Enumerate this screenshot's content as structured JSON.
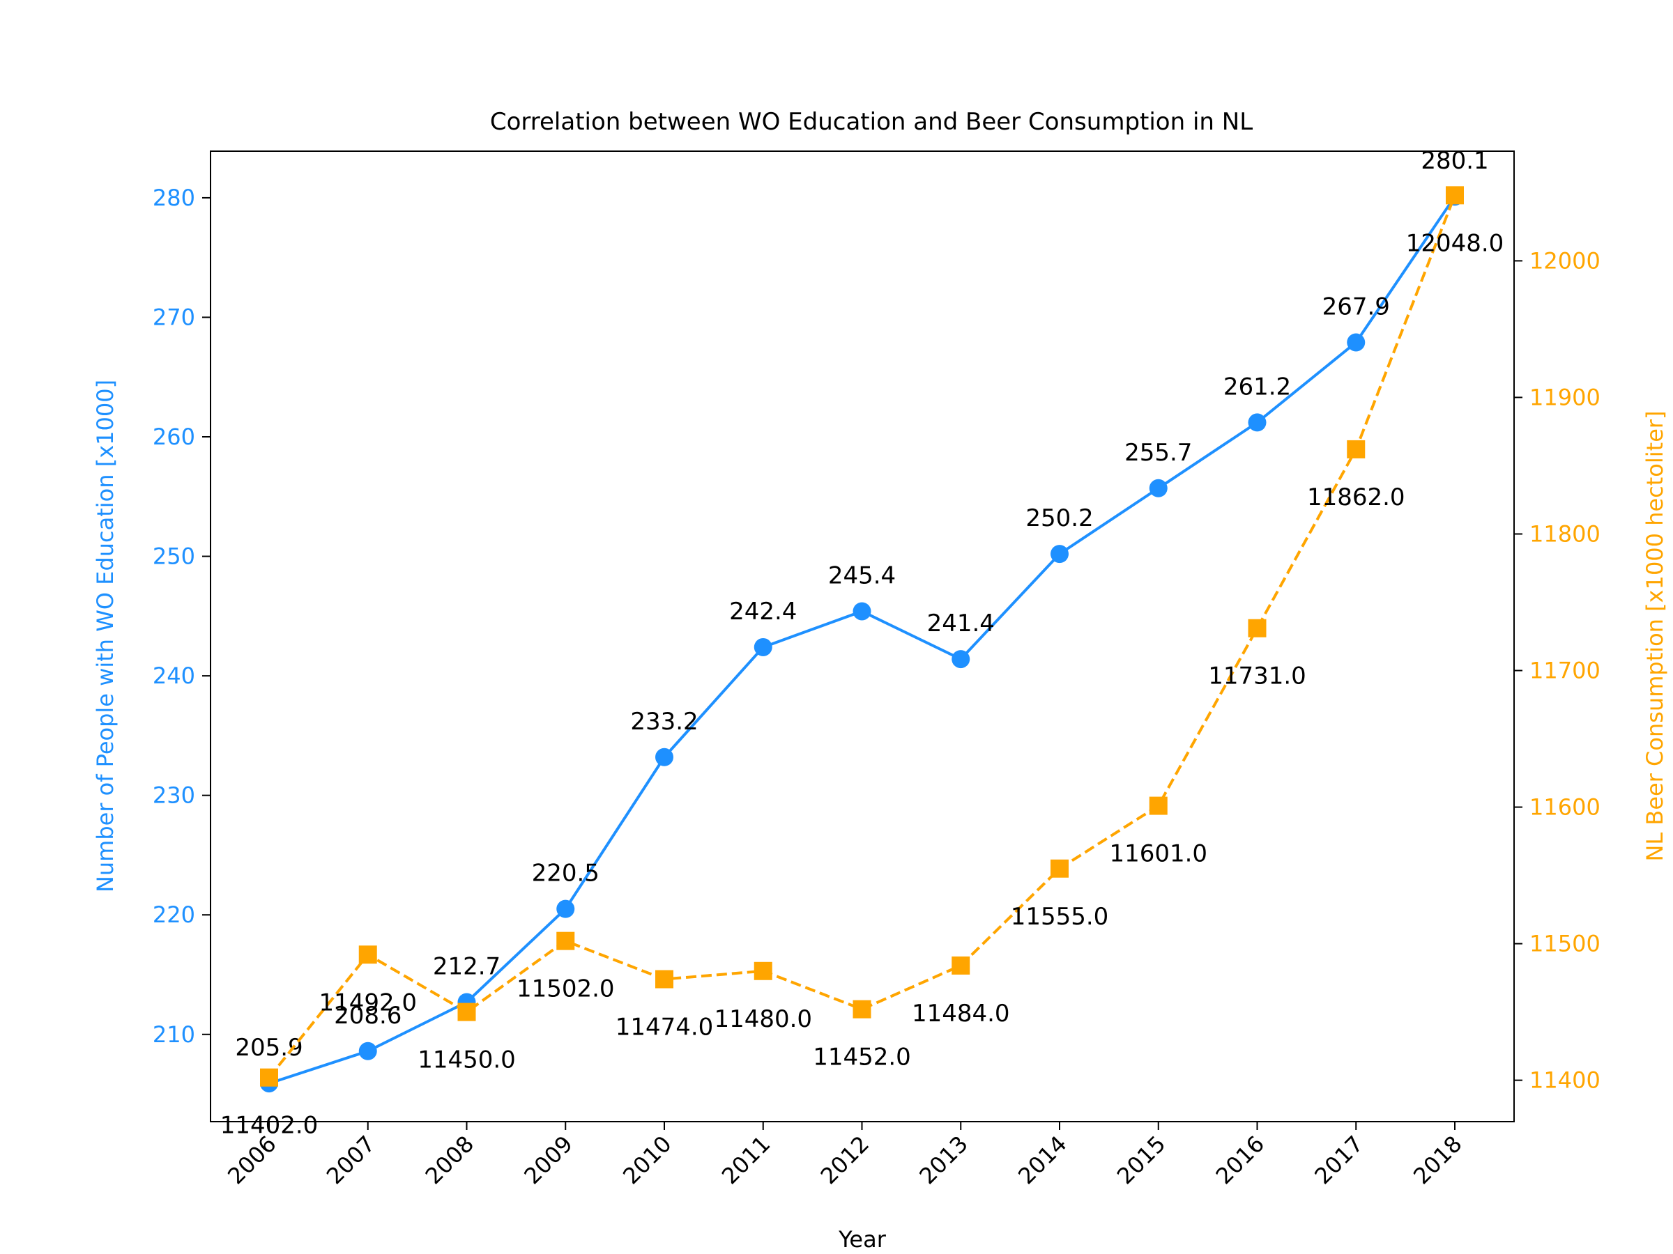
{
  "chart_data": {
    "type": "line",
    "title": "Correlation between WO Education and Beer Consumption in NL",
    "xlabel": "Year",
    "x": [
      2006,
      2007,
      2008,
      2009,
      2010,
      2011,
      2012,
      2013,
      2014,
      2015,
      2016,
      2017,
      2018
    ],
    "y_left": {
      "label": "Number of People with WO Education [x1000]",
      "ticks": [
        210,
        220,
        230,
        240,
        250,
        260,
        270,
        280
      ],
      "ylim": [
        202.7,
        283.9
      ],
      "color": "#1e90ff"
    },
    "y_right": {
      "label": "NL Beer Consumption [x1000 hectoliter]",
      "ticks": [
        11400,
        11500,
        11600,
        11700,
        11800,
        11900,
        12000
      ],
      "ylim": [
        11369.7,
        12080.3
      ],
      "color": "#ffa500"
    },
    "series": [
      {
        "axis": "left",
        "color": "#1e90ff",
        "marker": "circle",
        "line_style": "solid",
        "values": [
          205.9,
          208.6,
          212.7,
          220.5,
          233.2,
          242.4,
          245.4,
          241.4,
          250.2,
          255.7,
          261.2,
          267.9,
          280.1
        ],
        "labels": [
          "205.9",
          "208.6",
          "212.7",
          "220.5",
          "233.2",
          "242.4",
          "245.4",
          "241.4",
          "250.2",
          "255.7",
          "261.2",
          "267.9",
          "280.1"
        ]
      },
      {
        "axis": "right",
        "color": "#ffa500",
        "marker": "square",
        "line_style": "dashed",
        "values": [
          11402.0,
          11492.0,
          11450.0,
          11502.0,
          11474.0,
          11480.0,
          11452.0,
          11484.0,
          11555.0,
          11601.0,
          11731.0,
          11862.0,
          12048.0
        ],
        "labels": [
          "11402.0",
          "11492.0",
          "11450.0",
          "11502.0",
          "11474.0",
          "11480.0",
          "11452.0",
          "11484.0",
          "11555.0",
          "11601.0",
          "11731.0",
          "11862.0",
          "12048.0"
        ]
      }
    ],
    "grid": false,
    "legend": "none"
  }
}
